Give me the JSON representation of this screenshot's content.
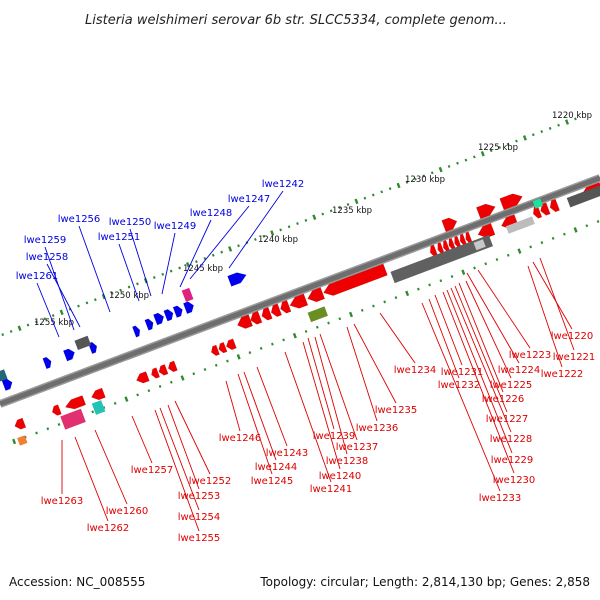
{
  "title": "Listeria welshimeri serovar 6b str. SLCC5334, complete genom...",
  "footer": {
    "accession": "Accession: NC_008555",
    "summary": "Topology: circular; Length: 2,814,130 bp; Genes: 2,858"
  },
  "colors": {
    "forward_label": "#0000dd",
    "reverse_label": "#dd0000",
    "forward_gene": "#0000ee",
    "reverse_gene": "#ee0000",
    "backbone": "#6e6e6e",
    "tick_dots": "#2e8b2e"
  },
  "kbp_markers": [
    "1220 kbp",
    "1225 kbp",
    "1230 kbp",
    "1235 kbp",
    "1240 kbp",
    "1245 kbp",
    "1250 kbp",
    "1255 kbp"
  ],
  "forward_labels": [
    "lwe1242",
    "lwe1247",
    "lwe1248",
    "lwe1249",
    "lwe1250",
    "lwe1251",
    "lwe1256",
    "lwe1258",
    "lwe1259",
    "lwe1261"
  ],
  "reverse_labels": [
    "lwe1220",
    "lwe1221",
    "lwe1222",
    "lwe1223",
    "lwe1224",
    "lwe1225",
    "lwe1226",
    "lwe1227",
    "lwe1228",
    "lwe1229",
    "lwe1230",
    "lwe1231",
    "lwe1232",
    "lwe1233",
    "lwe1234",
    "lwe1235",
    "lwe1236",
    "lwe1237",
    "lwe1238",
    "lwe1239",
    "lwe1240",
    "lwe1241",
    "lwe1243",
    "lwe1244",
    "lwe1245",
    "lwe1246",
    "lwe1252",
    "lwe1253",
    "lwe1254",
    "lwe1255",
    "lwe1257",
    "lwe1260",
    "lwe1262",
    "lwe1263"
  ]
}
